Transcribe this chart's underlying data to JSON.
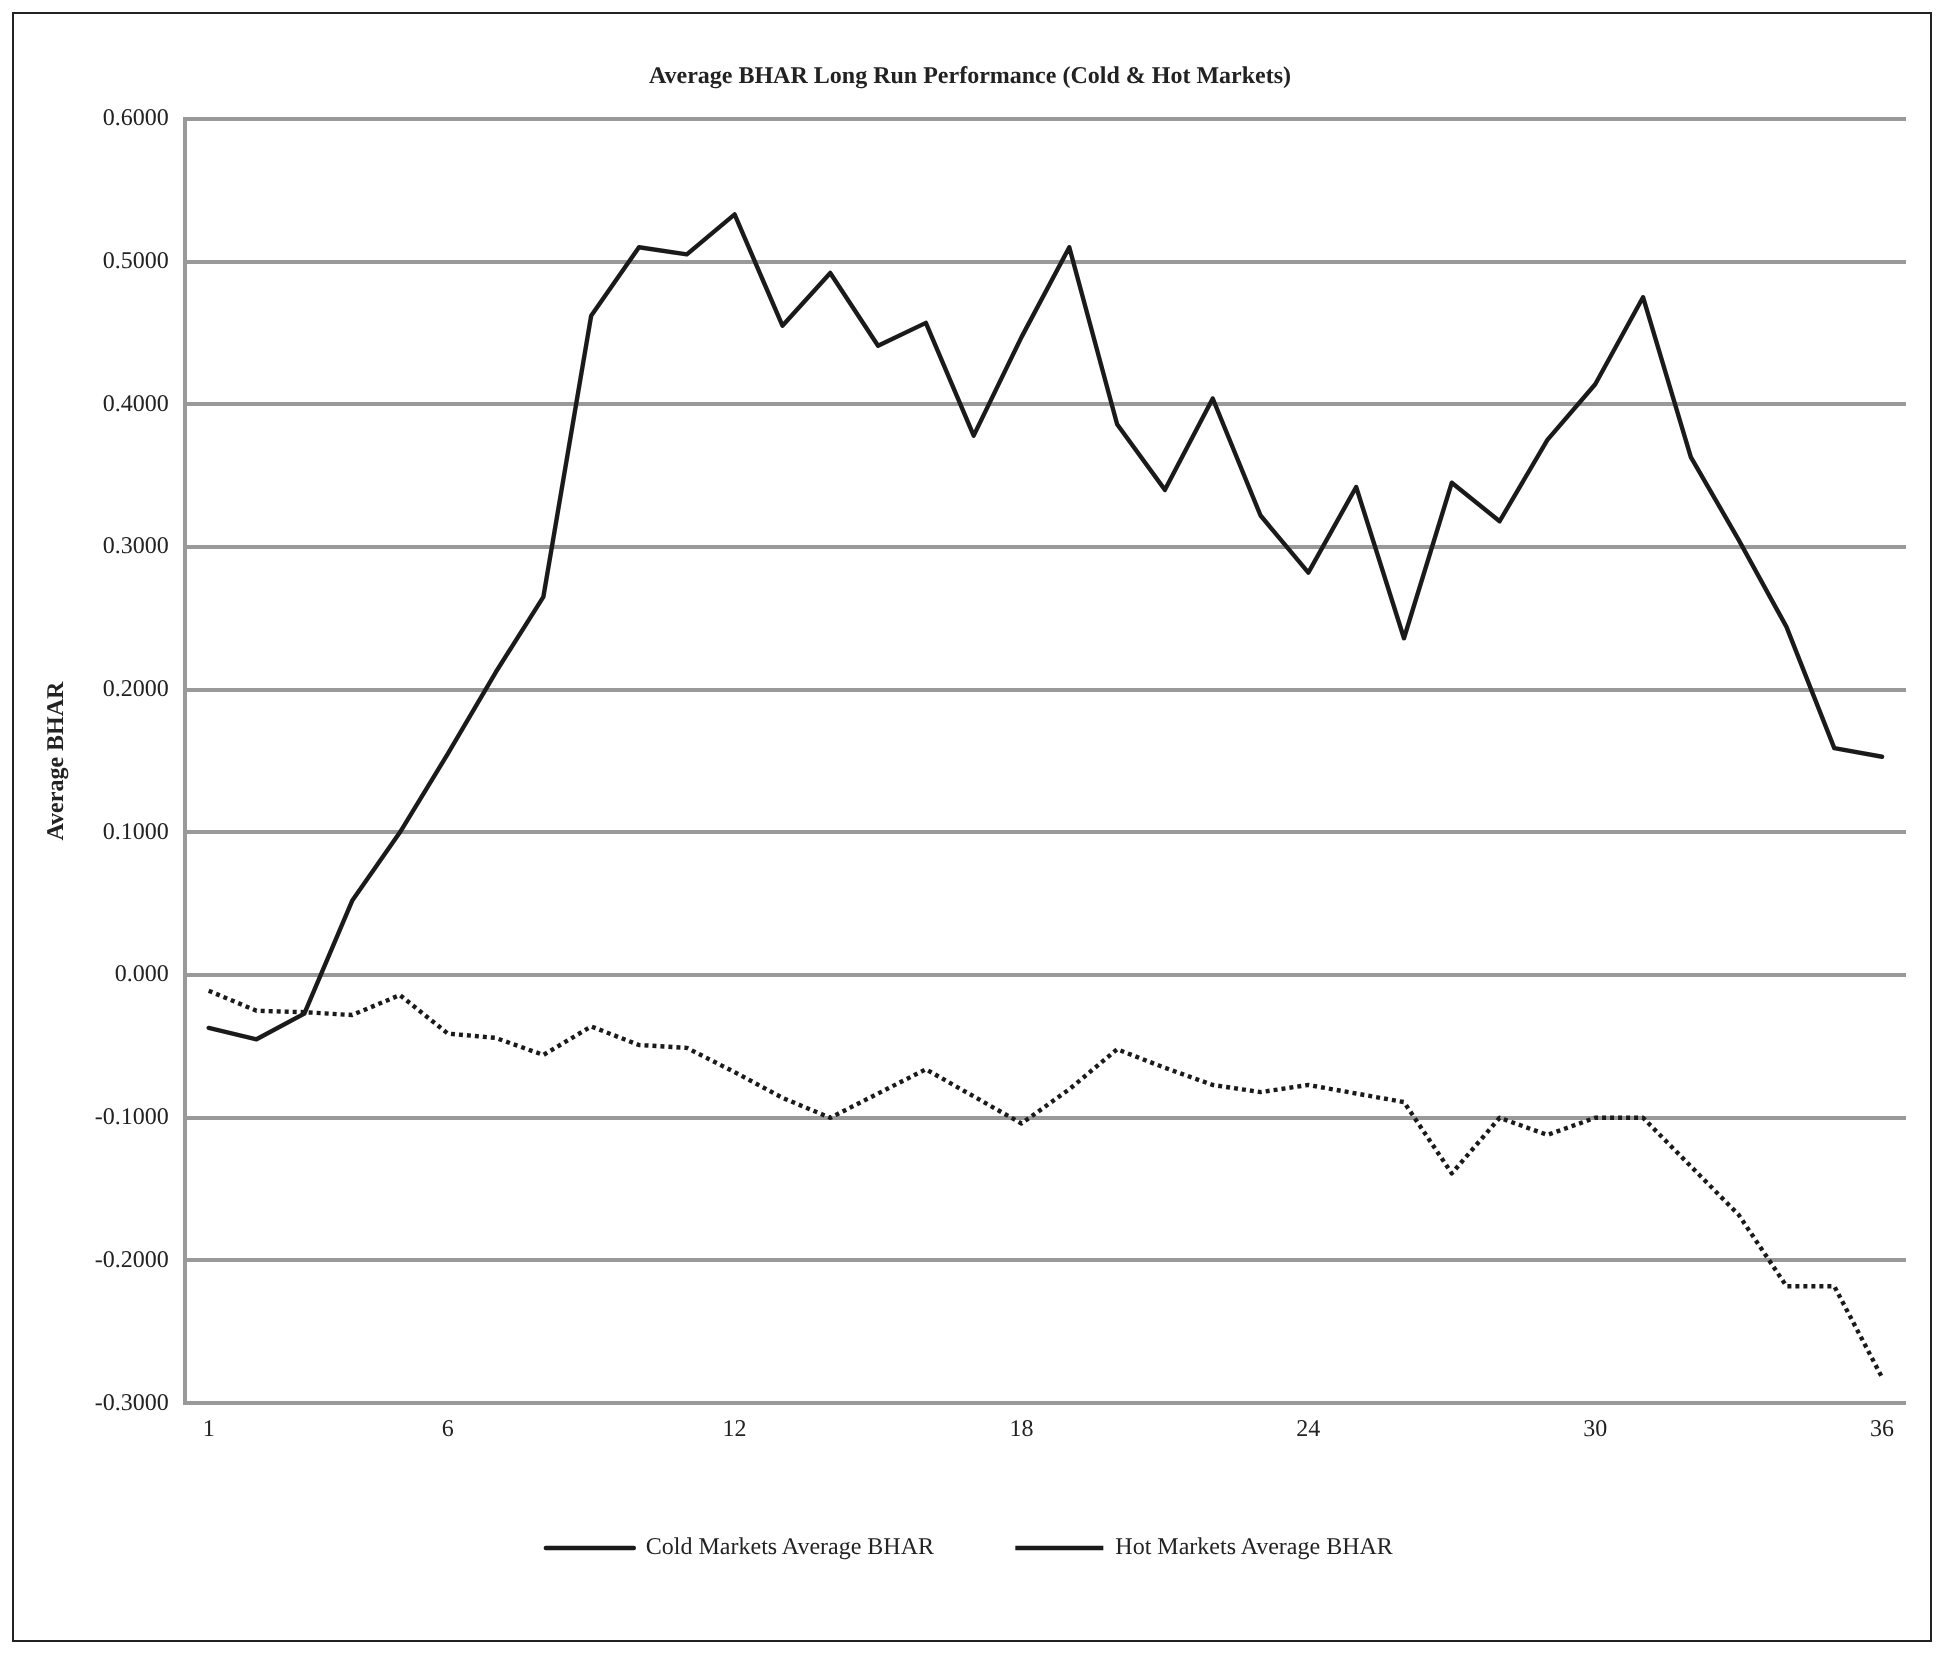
{
  "chart_data": {
    "type": "line",
    "title": "Average BHAR Long Run Performance (Cold & Hot Markets)",
    "ylabel": "Average BHAR",
    "categories": [
      "1",
      null,
      null,
      null,
      null,
      "6",
      null,
      null,
      null,
      null,
      null,
      "12",
      null,
      null,
      null,
      null,
      null,
      "18",
      null,
      null,
      null,
      null,
      null,
      "24",
      null,
      null,
      null,
      null,
      null,
      "30",
      null,
      null,
      null,
      null,
      null,
      "36"
    ],
    "series": [
      {
        "name": "Cold Markets Average BHAR",
        "color": "#1a1a1a",
        "line_style": "solid",
        "values": [
          -0.037,
          -0.045,
          -0.027,
          0.052,
          0.1,
          0.155,
          0.212,
          0.265,
          0.462,
          0.51,
          0.505,
          0.533,
          0.455,
          0.492,
          0.441,
          0.457,
          0.378,
          0.447,
          0.51,
          0.386,
          0.34,
          0.404,
          0.322,
          0.282,
          0.342,
          0.236,
          0.345,
          0.318,
          0.375,
          0.414,
          0.475,
          0.363,
          0.305,
          0.244,
          0.159,
          0.153
        ]
      },
      {
        "name": "Hot Markets Average BHAR",
        "color": "#1a1a1a",
        "line_style": "dotted",
        "values": [
          -0.011,
          -0.025,
          -0.026,
          -0.028,
          -0.014,
          -0.041,
          -0.044,
          -0.056,
          -0.036,
          -0.049,
          -0.051,
          -0.068,
          -0.086,
          -0.1,
          -0.083,
          -0.066,
          -0.085,
          -0.104,
          -0.08,
          -0.052,
          -0.065,
          -0.077,
          -0.082,
          -0.077,
          -0.083,
          -0.089,
          -0.139,
          -0.1,
          -0.112,
          -0.1,
          -0.1,
          -0.134,
          -0.168,
          -0.218,
          -0.218,
          -0.282
        ]
      }
    ],
    "ylim": [
      -0.3,
      0.6
    ],
    "yticks": [
      {
        "value": -0.3,
        "label": "-0.3000"
      },
      {
        "value": -0.2,
        "label": "-0.2000"
      },
      {
        "value": -0.1,
        "label": "-0.1000"
      },
      {
        "value": 0,
        "label": "0.000"
      },
      {
        "value": 0.1,
        "label": "0.1000"
      },
      {
        "value": 0.2,
        "label": "0.2000"
      },
      {
        "value": 0.3,
        "label": "0.3000"
      },
      {
        "value": 0.4,
        "label": "0.4000"
      },
      {
        "value": 0.5,
        "label": "0.5000"
      },
      {
        "value": 0.6,
        "label": "0.6000"
      }
    ],
    "grid": "y",
    "legend": "bottom",
    "marker": "none"
  }
}
